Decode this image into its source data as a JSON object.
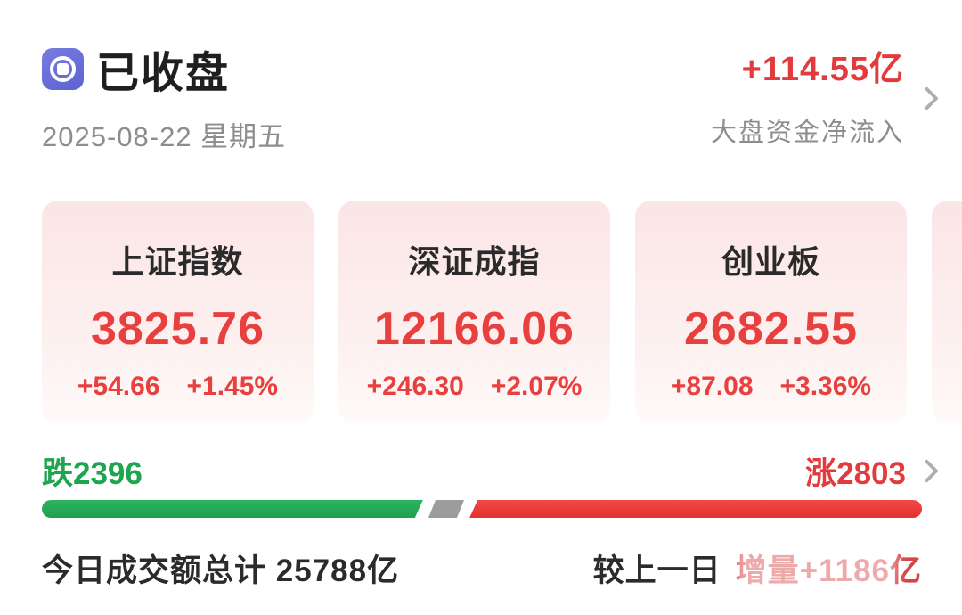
{
  "header": {
    "status_icon": "coin-record-icon",
    "status_title": "已收盘",
    "date": "2025-08-22 星期五",
    "net_inflow_value": "+114.55亿",
    "net_inflow_label": "大盘资金净流入"
  },
  "indices": [
    {
      "name": "上证指数",
      "value": "3825.76",
      "change": "+54.66",
      "change_pct": "+1.45%"
    },
    {
      "name": "深证成指",
      "value": "12166.06",
      "change": "+246.30",
      "change_pct": "+2.07%"
    },
    {
      "name": "创业板",
      "value": "2682.55",
      "change": "+87.08",
      "change_pct": "+3.36%"
    }
  ],
  "breadth": {
    "decliners_label": "跌2396",
    "advancers_label": "涨2803",
    "bar": {
      "green_pct": 43.3,
      "gray_left_pct": 44.3,
      "gray_width_pct": 3.2,
      "red_left_pct": 48.6,
      "red_pct": 51.4
    }
  },
  "turnover": {
    "today_label": "今日成交额总计",
    "today_value": "25788亿",
    "vs_prev_label": "较上一日",
    "vs_prev_value": "增量+1186亿"
  },
  "colors": {
    "accent_red": "#e23b3d",
    "value_red": "#e8403f",
    "green": "#1fa44f",
    "bar_green": "#25ab56",
    "bar_gray": "#9c9c9c",
    "bar_red": "#ec3a3b",
    "text_dark": "#2b2b2b",
    "text_gray": "#8d8d8d",
    "card_bg_top": "#fbe5e6",
    "card_bg_bottom": "#fefaf9",
    "icon_purple": "#6b6fd9"
  }
}
